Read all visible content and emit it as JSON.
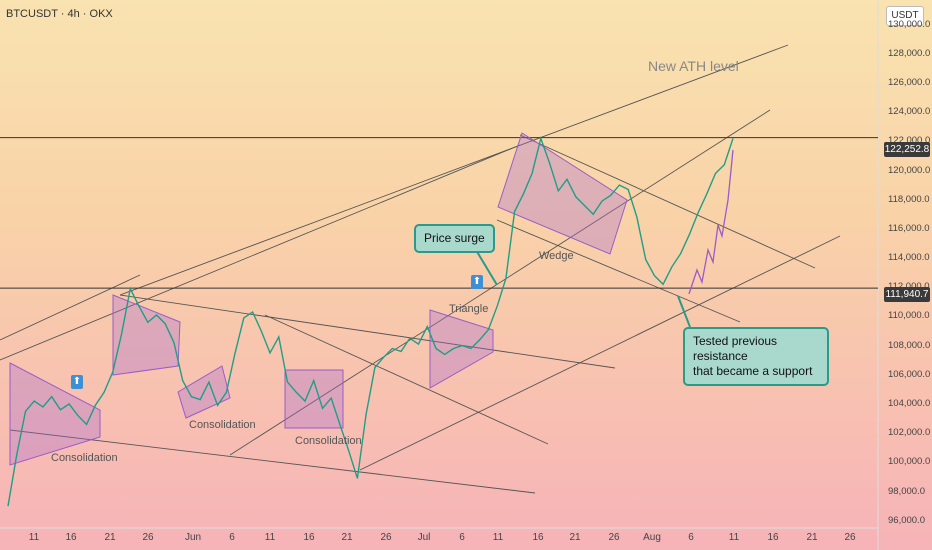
{
  "header": {
    "ticker": "BTCUSDT · 4h · OKX",
    "unit": "USDT"
  },
  "chart_data": {
    "type": "line",
    "title": "BTCUSDT · 4h · OKX",
    "y_ticks": [
      "130,000.0",
      "128,000.0",
      "126,000.0",
      "124,000.0",
      "122,000.0",
      "120,000.0",
      "118,000.0",
      "116,000.0",
      "114,000.0",
      "112,000.0",
      "110,000.0",
      "108,000.0",
      "106,000.0",
      "104,000.0",
      "102,000.0",
      "100,000.0",
      "98,000.0",
      "96,000.0"
    ],
    "ylim": [
      95500,
      131000
    ],
    "x_ticks": [
      "11",
      "16",
      "21",
      "26",
      "Jun",
      "6",
      "11",
      "16",
      "21",
      "26",
      "Jul",
      "6",
      "11",
      "16",
      "21",
      "26",
      "Aug",
      "6",
      "11",
      "16",
      "21",
      "26"
    ],
    "horizontal_levels": [
      {
        "label": "122,252.8",
        "value": 122252.8
      },
      {
        "label": "111,940.7",
        "value": 111940.7
      }
    ],
    "annotations": {
      "ath": "New ATH level",
      "price_surge": "Price surge",
      "wedge": "Wedge",
      "triangle": "Triangle",
      "consolidation_1": "Consolidation",
      "consolidation_2": "Consolidation",
      "consolidation_3": "Consolidation",
      "tested_line1": "Tested previous resistance",
      "tested_line2": "that became a support"
    },
    "series": [
      {
        "values": [
          97000,
          100500,
          103500,
          104200,
          103800,
          104500,
          103600,
          104000,
          103200,
          102600,
          103900,
          104800,
          106200,
          108800,
          111900,
          110700,
          109600,
          110100,
          109500,
          108200,
          105600,
          104500,
          104300,
          105500,
          103900,
          104800,
          107500,
          109900,
          110300,
          109000,
          107500,
          108600,
          105500,
          104800,
          104200,
          105600,
          103700,
          104400,
          102600,
          100800,
          98900,
          103300,
          106500,
          107200,
          107800,
          107600,
          108500,
          108100,
          109300,
          107800,
          107400,
          107800,
          108000,
          107800,
          108400,
          109100,
          110700,
          112600,
          117200,
          118400,
          119800,
          122200,
          120500,
          118600,
          119400,
          118200,
          117600,
          117000,
          117900,
          118300,
          119000,
          118700,
          116800,
          113900,
          112800,
          112200,
          113400,
          114300,
          115600,
          117100,
          118400,
          119800,
          120400,
          122200
        ]
      }
    ]
  }
}
